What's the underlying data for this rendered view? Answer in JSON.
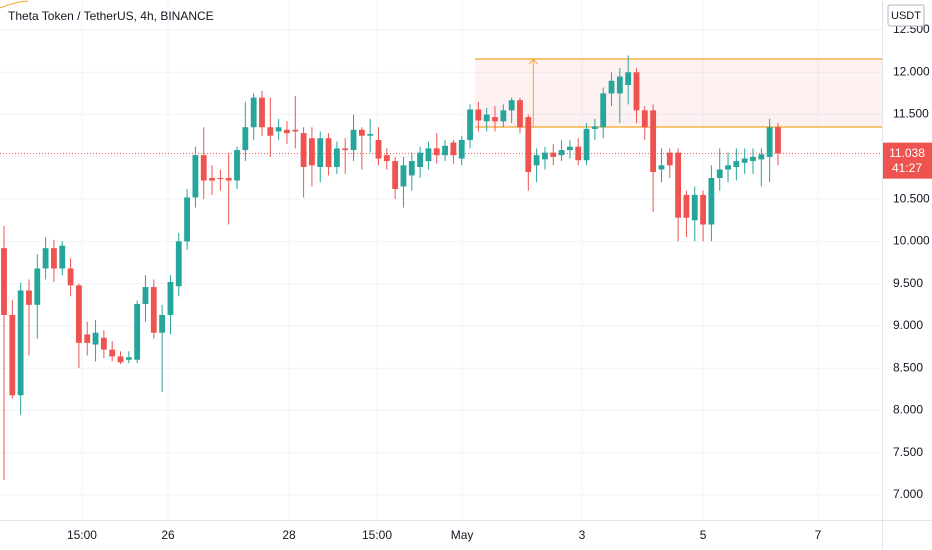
{
  "chart_data": {
    "type": "candlestick",
    "title": "Theta Token / TetherUS, 4h, BINANCE",
    "unit": "USDT",
    "up_color": "#26a69a",
    "down_color": "#ef5350",
    "grid": true,
    "open": [
      9.92,
      9.13,
      8.18,
      9.42,
      9.25,
      9.68,
      9.92,
      9.68,
      9.68,
      9.48,
      8.9,
      8.78,
      8.86,
      8.72,
      8.64,
      8.6,
      8.6,
      9.26,
      9.46,
      8.92,
      9.13,
      9.47,
      10.0,
      10.52,
      11.02,
      10.75,
      10.75,
      10.75,
      10.72,
      11.08,
      11.35,
      11.7,
      11.35,
      11.3,
      11.32,
      11.32,
      11.28,
      11.22,
      10.88,
      11.22,
      10.88,
      11.1,
      11.08,
      11.32,
      11.25,
      11.2,
      11.02,
      10.95,
      10.65,
      10.78,
      10.88,
      10.95,
      11.1,
      11.02,
      11.17,
      10.98,
      11.2,
      11.56,
      11.42,
      11.47,
      11.42,
      11.55,
      11.67,
      11.47,
      10.9,
      10.97,
      11.05,
      11.02,
      11.08,
      11.12,
      10.96,
      11.33,
      11.35,
      11.75,
      11.75,
      11.85,
      12.0,
      11.55,
      11.55,
      10.85,
      11.05,
      11.05,
      10.55,
      10.25,
      10.55,
      10.2,
      10.75,
      10.85,
      10.88,
      10.93,
      10.95,
      10.97,
      11.0,
      11.35
    ],
    "high": [
      10.18,
      9.31,
      9.51,
      9.55,
      9.85,
      10.05,
      10.02,
      10.0,
      9.8,
      9.5,
      9.05,
      9.07,
      8.95,
      8.82,
      8.7,
      8.7,
      9.3,
      9.6,
      9.55,
      9.25,
      9.6,
      10.1,
      10.62,
      11.12,
      11.35,
      10.9,
      10.85,
      11.05,
      11.12,
      11.65,
      11.75,
      11.78,
      11.7,
      11.45,
      11.42,
      11.72,
      11.35,
      11.35,
      11.3,
      11.28,
      11.18,
      11.22,
      11.5,
      11.35,
      11.45,
      11.35,
      11.1,
      11.0,
      11.0,
      11.05,
      11.12,
      11.18,
      11.28,
      11.2,
      11.2,
      11.25,
      11.62,
      11.65,
      11.58,
      11.6,
      11.62,
      11.7,
      11.7,
      11.5,
      11.1,
      11.12,
      11.15,
      11.2,
      11.2,
      11.22,
      11.4,
      11.45,
      11.82,
      12.0,
      12.05,
      12.2,
      12.05,
      11.6,
      11.62,
      11.1,
      11.1,
      11.1,
      10.6,
      10.65,
      10.6,
      10.9,
      11.1,
      11.05,
      11.1,
      11.1,
      11.1,
      11.1,
      11.45,
      11.4
    ],
    "low": [
      7.18,
      8.14,
      7.95,
      8.65,
      8.85,
      9.55,
      9.52,
      9.6,
      9.35,
      8.5,
      8.65,
      8.58,
      8.62,
      8.58,
      8.55,
      8.56,
      8.56,
      9.05,
      8.85,
      8.22,
      8.9,
      9.35,
      9.9,
      10.4,
      10.5,
      10.55,
      10.6,
      10.2,
      10.62,
      10.95,
      11.2,
      11.25,
      11.0,
      11.2,
      11.15,
      11.1,
      10.52,
      10.65,
      10.7,
      10.78,
      10.8,
      10.8,
      10.95,
      10.85,
      11.05,
      10.9,
      10.85,
      10.5,
      10.4,
      10.6,
      10.75,
      10.85,
      10.92,
      10.95,
      10.92,
      10.9,
      11.1,
      11.3,
      11.3,
      11.3,
      11.35,
      11.4,
      11.28,
      10.6,
      10.7,
      10.85,
      10.9,
      10.95,
      10.98,
      10.9,
      10.9,
      11.2,
      11.22,
      11.6,
      11.4,
      11.62,
      11.4,
      11.2,
      10.35,
      10.7,
      10.75,
      10.0,
      10.05,
      10.0,
      10.0,
      10.0,
      10.6,
      10.7,
      10.72,
      10.8,
      10.8,
      10.65,
      10.7,
      10.9
    ],
    "close": [
      9.13,
      8.18,
      9.42,
      9.25,
      9.68,
      9.92,
      9.68,
      9.95,
      9.48,
      8.8,
      8.8,
      8.92,
      8.72,
      8.64,
      8.57,
      8.63,
      9.26,
      9.46,
      8.92,
      9.13,
      9.52,
      10.0,
      10.52,
      11.02,
      10.72,
      10.72,
      10.74,
      10.72,
      11.08,
      11.35,
      11.7,
      11.35,
      11.25,
      11.35,
      11.28,
      11.3,
      10.88,
      10.9,
      11.22,
      10.88,
      11.1,
      11.08,
      11.32,
      11.25,
      11.27,
      10.98,
      10.95,
      10.62,
      10.9,
      10.95,
      11.05,
      11.1,
      11.02,
      11.13,
      11.02,
      11.2,
      11.56,
      11.43,
      11.5,
      11.42,
      11.55,
      11.67,
      11.35,
      10.82,
      11.02,
      11.05,
      11.0,
      11.08,
      11.12,
      10.96,
      11.33,
      11.36,
      11.75,
      11.9,
      11.95,
      12.0,
      11.55,
      11.35,
      10.82,
      10.9,
      10.9,
      10.28,
      10.28,
      10.55,
      10.2,
      10.75,
      10.85,
      10.9,
      10.95,
      10.98,
      11.0,
      11.03,
      11.35,
      11.04
    ],
    "xlim": [
      -0.48,
      105.5
    ],
    "xticks": [
      {
        "value": 9.37,
        "label": "15:00"
      },
      {
        "value": 19.71,
        "label": "26"
      },
      {
        "value": 34.25,
        "label": "28"
      },
      {
        "value": 44.82,
        "label": "15:00"
      },
      {
        "value": 55.04,
        "label": "May"
      },
      {
        "value": 69.45,
        "label": "3"
      },
      {
        "value": 84.0,
        "label": "5"
      },
      {
        "value": 97.81,
        "label": "7"
      }
    ],
    "ylim": [
      6.705,
      12.855
    ],
    "yticks": [
      {
        "value": 7,
        "label": "7.000"
      },
      {
        "value": 7.5,
        "label": "7.500"
      },
      {
        "value": 8,
        "label": "8.000"
      },
      {
        "value": 8.5,
        "label": "8.500"
      },
      {
        "value": 9,
        "label": "9.000"
      },
      {
        "value": 9.5,
        "label": "9.500"
      },
      {
        "value": 10,
        "label": "10.000"
      },
      {
        "value": 10.5,
        "label": "10.500"
      },
      {
        "value": 11,
        "label": "11.000"
      },
      {
        "value": 11.5,
        "label": "11.500"
      },
      {
        "value": 12,
        "label": "12.000"
      },
      {
        "value": 12.5,
        "label": "12.500"
      }
    ],
    "last_price": {
      "value": 11.038,
      "label": "11.038"
    },
    "countdown": "41:27",
    "range": {
      "top": 12.157,
      "bottom": 11.353,
      "start": 56.6,
      "arrow": 63.6,
      "color": "#f5a623"
    }
  }
}
